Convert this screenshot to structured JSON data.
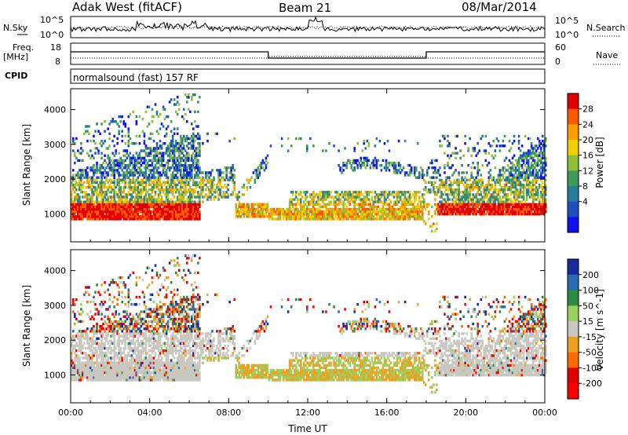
{
  "header": {
    "station": "Adak West (fitACF)",
    "beam": "Beam 21",
    "date": "08/Mar/2014"
  },
  "strips": {
    "nsky_label": "N.Sky",
    "nsearch_label": "N.Search",
    "noise_ticks": [
      "10^5",
      "10^0"
    ],
    "freq_label": "Freq.",
    "freq_unit": "[MHz]",
    "freq_ticks": [
      "18",
      "8"
    ],
    "nave_label": "Nave",
    "nave_ticks": [
      "60",
      "0"
    ],
    "cpid_label": "CPID",
    "cpid_value": "normalsound (fast) 157 RF"
  },
  "chart_data": [
    {
      "type": "heatmap",
      "name": "power",
      "ylabel": "Slant Range [km]",
      "xlabel": "",
      "y_ticks": [
        1000,
        2000,
        3000,
        4000
      ],
      "ylim": [
        200,
        4600
      ],
      "x_ticks": [
        "00:00",
        "04:00",
        "08:00",
        "12:00",
        "16:00",
        "20:00",
        "00:00"
      ],
      "colorbar": {
        "label": "Power [dB]",
        "ticks": [
          "28",
          "24",
          "20",
          "16",
          "12",
          "8",
          "4"
        ],
        "colors": [
          "#e00000",
          "#ff5a00",
          "#ff9c00",
          "#f2d000",
          "#8fbf3a",
          "#3f9a5a",
          "#2a7a9a",
          "#2050c0",
          "#1010ee"
        ]
      }
    },
    {
      "type": "heatmap",
      "name": "velocity",
      "ylabel": "Slant Range [km]",
      "xlabel": "Time UT",
      "y_ticks": [
        1000,
        2000,
        3000,
        4000
      ],
      "ylim": [
        200,
        4600
      ],
      "x_ticks": [
        "00:00",
        "04:00",
        "08:00",
        "12:00",
        "16:00",
        "20:00",
        "00:00"
      ],
      "colorbar": {
        "label": "Velocity [m s^-1]",
        "ticks": [
          "200",
          "100",
          "50",
          "15",
          "-15",
          "-50",
          "-100",
          "-200"
        ],
        "colors": [
          "#1a2a9a",
          "#2a6ab0",
          "#2e8a40",
          "#9ad060",
          "#c8c8c0",
          "#f0a020",
          "#ff6a00",
          "#e00000",
          "#ff0000"
        ]
      }
    }
  ]
}
